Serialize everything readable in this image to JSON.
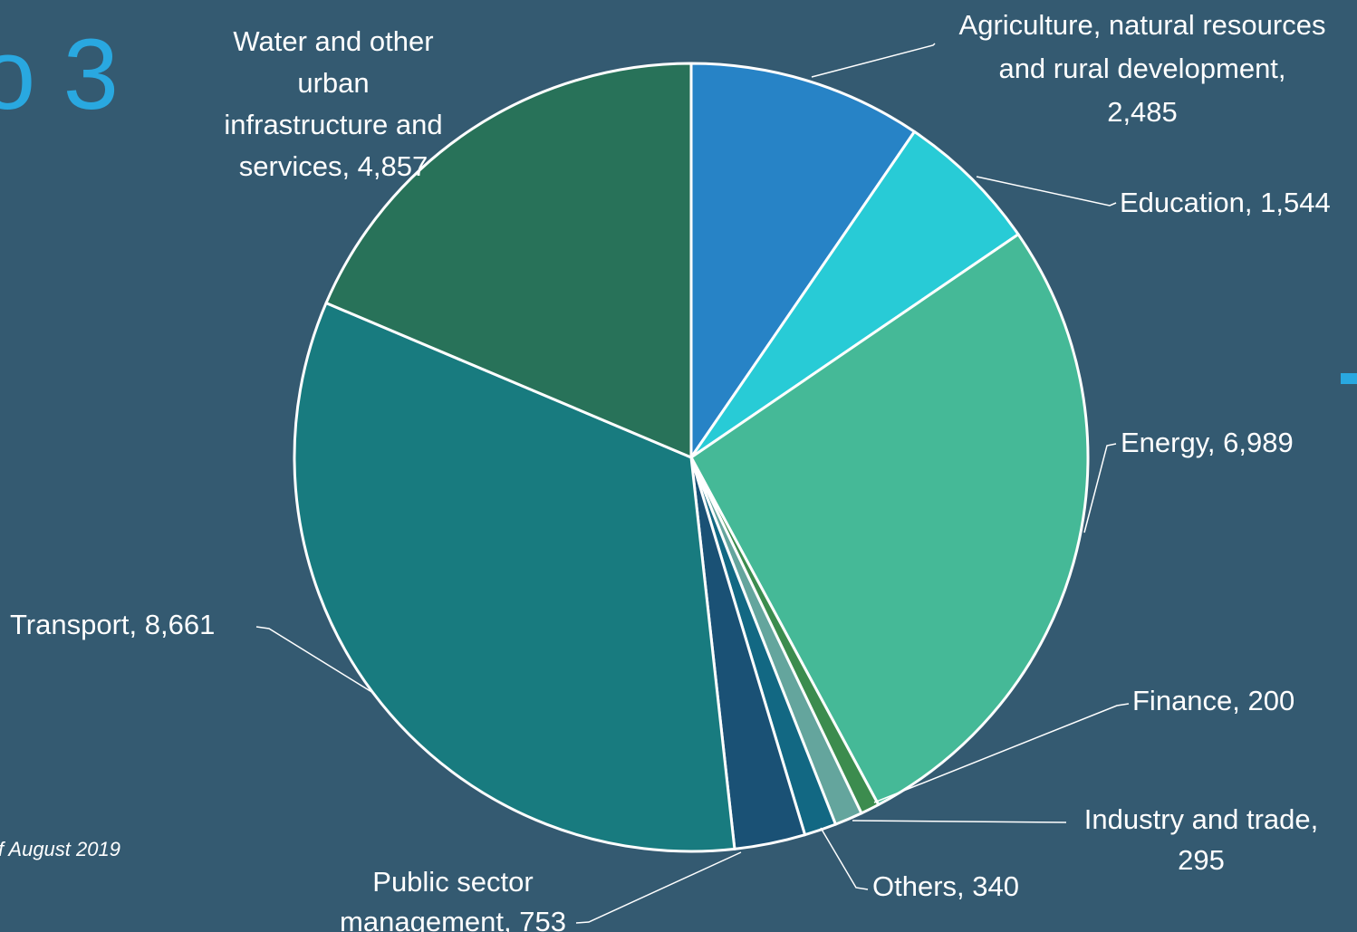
{
  "background": {
    "title_fragment": "o 3",
    "footnote_fragment": "f August 2019"
  },
  "colors": {
    "background": "#345a71",
    "accent": "#29a8e0",
    "slice_border": "#ffffff",
    "leader_line": "#ffffff"
  },
  "chart_data": {
    "type": "pie",
    "title": "",
    "labels_show_values": true,
    "slices": [
      {
        "label": "Agriculture, natural resources and rural development",
        "value": 2485,
        "value_text": "2,485",
        "color": "#2783c6"
      },
      {
        "label": "Education",
        "value": 1544,
        "value_text": "1,544",
        "color": "#28cbd6"
      },
      {
        "label": "Energy",
        "value": 6989,
        "value_text": "6,989",
        "color": "#45b997"
      },
      {
        "label": "Finance",
        "value": 200,
        "value_text": "200",
        "color": "#3c8c4e"
      },
      {
        "label": "Industry and trade",
        "value": 295,
        "value_text": "295",
        "color": "#64a59d"
      },
      {
        "label": "Others",
        "value": 340,
        "value_text": "340",
        "color": "#126883"
      },
      {
        "label": "Public sector management",
        "value": 753,
        "value_text": "753",
        "color": "#1a5175"
      },
      {
        "label": "Transport",
        "value": 8661,
        "value_text": "8,661",
        "color": "#187b7f"
      },
      {
        "label": "Water and other urban infrastructure and services",
        "value": 4857,
        "value_text": "4,857",
        "color": "#287259"
      }
    ]
  },
  "label_text": [
    [
      "Agriculture, natural resources",
      "and rural development,",
      "2,485"
    ],
    [
      "Education,  1,544"
    ],
    [
      "Energy,  6,989"
    ],
    [
      "Finance,  200"
    ],
    [
      "Industry and trade,",
      "295"
    ],
    [
      "Others,  340"
    ],
    [
      "Public sector",
      "management,  753"
    ],
    [
      "Transport,  8,661"
    ],
    [
      "Water and other",
      "urban",
      "infrastructure and",
      "services,  4,857"
    ]
  ]
}
